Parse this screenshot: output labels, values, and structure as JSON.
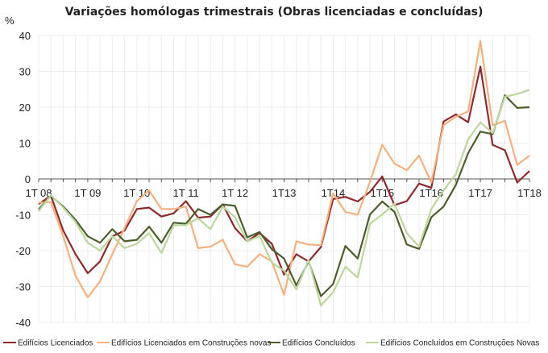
{
  "chart_data": {
    "type": "line",
    "title": "Variações homólogas trimestrais (Obras licenciadas e concluídas)",
    "ylabel": "%",
    "xlabel": "",
    "ylim": [
      -40,
      40
    ],
    "yticks": [
      40,
      30,
      20,
      10,
      0,
      -10,
      -20,
      -30,
      -40
    ],
    "grid": true,
    "legend_position": "bottom",
    "x_start": "1T08",
    "x_count": 41,
    "x_tick_labels": [
      "1T 08",
      "1T 09",
      "1T 10",
      "1T 11",
      "1T 12",
      "1T13",
      "1T14",
      "1T15",
      "1T16",
      "1T17",
      "1T18"
    ],
    "series": [
      {
        "name": "Edifícios Licenciados",
        "color": "#8b2b2e",
        "values": [
          -7,
          -4.7,
          -14.4,
          -21,
          -26.3,
          -23,
          -16,
          -14.4,
          -8.4,
          -8,
          -10.5,
          -9.6,
          -6.2,
          -10.8,
          -10.5,
          -7.1,
          -13.7,
          -17.4,
          -15.1,
          -18.1,
          -26.7,
          -21,
          -23,
          -19,
          -5.6,
          -5,
          -6.3,
          -3.6,
          0.7,
          -7.3,
          -6.2,
          -1.3,
          -2.5,
          16,
          18,
          15.8,
          31.3,
          9.5,
          8,
          -1,
          2.2
        ]
      },
      {
        "name": "Edifícios Licenciados em Construções novas",
        "color": "#f4b07f",
        "values": [
          -6.6,
          -6.5,
          -16,
          -27,
          -33,
          -28.6,
          -21,
          -13.7,
          -6.2,
          -3.2,
          -8.4,
          -8.4,
          -7.7,
          -19.3,
          -18.9,
          -17,
          -23.8,
          -24.5,
          -21,
          -23,
          -32.3,
          -17.4,
          -18.3,
          -18.5,
          -4,
          -9.2,
          -10,
          -0.8,
          9.5,
          4.3,
          2.4,
          6.5,
          -1,
          15,
          17.3,
          18.8,
          38.4,
          15,
          16.2,
          3.9,
          6.5
        ]
      },
      {
        "name": "Edifícios Concluídos",
        "color": "#4b5e2c",
        "values": [
          -8.5,
          -4.7,
          -7.7,
          -11.4,
          -16,
          -17.8,
          -14,
          -17.4,
          -17,
          -13.3,
          -17.8,
          -12.2,
          -12.5,
          -8.4,
          -10,
          -7.1,
          -7.5,
          -16.3,
          -14.8,
          -19.6,
          -22.2,
          -29.7,
          -23,
          -32.7,
          -29.3,
          -18.7,
          -22.2,
          -9.9,
          -6.3,
          -9.2,
          -18.3,
          -19.5,
          -10.7,
          -7.7,
          -1.7,
          7.2,
          13.2,
          12.5,
          23.3,
          19.8,
          20
        ]
      },
      {
        "name": "Edifícios Concluídos em Construções Novas",
        "color": "#bcd69e",
        "values": [
          -9,
          -4.5,
          -8,
          -12,
          -17.8,
          -20,
          -16,
          -19.3,
          -18.1,
          -15.1,
          -20.7,
          -12.9,
          -12.9,
          -11,
          -14,
          -7.7,
          -10.7,
          -17.4,
          -15.9,
          -23.4,
          -25.6,
          -30.8,
          -22.6,
          -35.3,
          -31.6,
          -24.5,
          -27.5,
          -12.5,
          -9.9,
          -6.9,
          -15.1,
          -18.9,
          -8.4,
          -3.2,
          1.3,
          11,
          15.8,
          12.8,
          22.9,
          23.7,
          24.8
        ]
      }
    ]
  }
}
